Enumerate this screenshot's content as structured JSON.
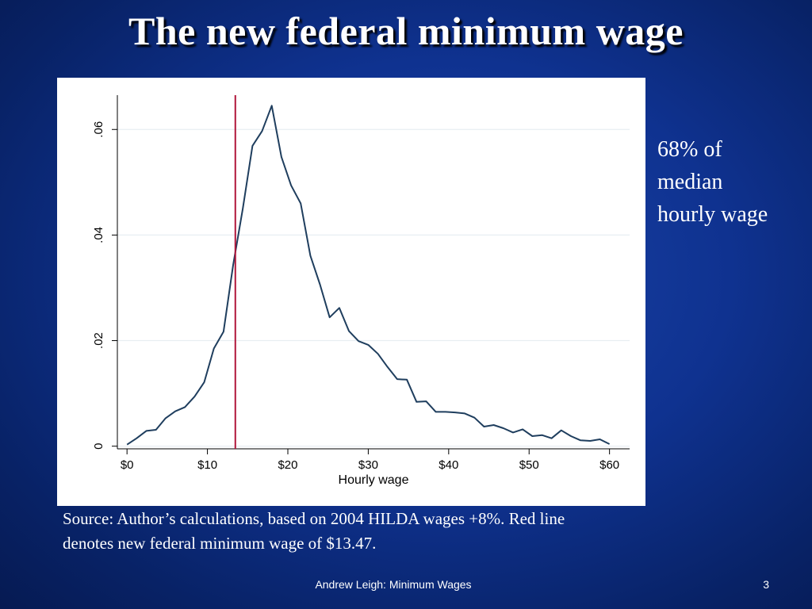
{
  "slide": {
    "title": "The new federal minimum wage",
    "note_lines": [
      "68% of",
      "median",
      "hourly wage"
    ],
    "source_lines": [
      "Source: Author’s calculations, based on 2004 HILDA wages +8%. Red line",
      "denotes new federal minimum wage of $13.47."
    ],
    "footer": "Andrew Leigh: Minimum Wages",
    "page_number": "3"
  },
  "chart_data": {
    "type": "line",
    "title": "",
    "xlabel": "Hourly wage",
    "ylabel": "",
    "xlim": [
      -1.2,
      62.5
    ],
    "ylim": [
      -0.0005,
      0.0665
    ],
    "x_ticks": [
      {
        "value": 0,
        "label": "$0"
      },
      {
        "value": 10,
        "label": "$10"
      },
      {
        "value": 20,
        "label": "$20"
      },
      {
        "value": 30,
        "label": "$30"
      },
      {
        "value": 40,
        "label": "$40"
      },
      {
        "value": 50,
        "label": "$50"
      },
      {
        "value": 60,
        "label": "$60"
      }
    ],
    "y_ticks": [
      {
        "value": 0,
        "label": "0"
      },
      {
        "value": 0.02,
        "label": ".02"
      },
      {
        "value": 0.04,
        "label": ".04"
      },
      {
        "value": 0.06,
        "label": ".06"
      }
    ],
    "grid": true,
    "colors": {
      "line": "#1f3e5e",
      "reference": "#b0163a",
      "plot_bg": "#ffffff",
      "grid": "#e8eef2"
    },
    "series": [
      {
        "x": [
          0,
          1.2,
          2.4,
          3.6,
          4.8,
          6.0,
          7.2,
          8.4,
          9.6,
          10.8,
          12.0,
          13.2,
          14.4,
          15.6,
          16.8,
          18.0,
          19.2,
          20.4,
          21.6,
          22.8,
          24.0,
          25.2,
          26.4,
          27.6,
          28.8,
          30.0,
          31.2,
          32.4,
          33.6,
          34.8,
          36.0,
          37.2,
          38.4,
          39.6,
          40.8,
          42.0,
          43.2,
          44.4,
          45.6,
          46.8,
          48.0,
          49.2,
          50.4,
          51.6,
          52.8,
          54.0,
          55.2,
          56.4,
          57.6,
          58.8,
          60.0
        ],
        "y": [
          0.0003,
          0.0015,
          0.0029,
          0.0031,
          0.0053,
          0.0066,
          0.0074,
          0.0094,
          0.0121,
          0.0185,
          0.0217,
          0.0343,
          0.045,
          0.0569,
          0.0597,
          0.0645,
          0.0548,
          0.0494,
          0.046,
          0.0361,
          0.0306,
          0.0244,
          0.0262,
          0.0218,
          0.0199,
          0.0192,
          0.0175,
          0.015,
          0.0127,
          0.0126,
          0.0084,
          0.0085,
          0.0065,
          0.0065,
          0.0064,
          0.0062,
          0.0054,
          0.0037,
          0.004,
          0.0034,
          0.0026,
          0.0032,
          0.0019,
          0.0021,
          0.0015,
          0.003,
          0.0019,
          0.0011,
          0.001,
          0.0013,
          0.0004
        ]
      }
    ],
    "reference_line": {
      "x": 13.47
    }
  }
}
